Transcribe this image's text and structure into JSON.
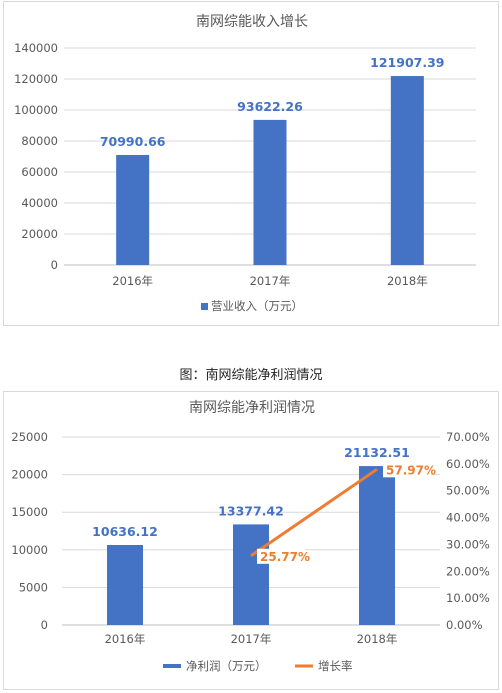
{
  "caption": "图：南网综能净利润情况",
  "chart_data": [
    {
      "type": "bar",
      "title": "南网综能收入增长",
      "categories": [
        "2016年",
        "2017年",
        "2018年"
      ],
      "series": [
        {
          "name": "营业收入（万元）",
          "values": [
            70990.66,
            93622.26,
            121907.39
          ],
          "color": "#4472c4"
        }
      ],
      "data_labels": [
        "70990.66",
        "93622.26",
        "121907.39"
      ],
      "ylim": [
        0,
        140000
      ],
      "yticks": [
        "0",
        "20000",
        "40000",
        "60000",
        "80000",
        "100000",
        "120000",
        "140000"
      ],
      "grid": true,
      "legend": "bottom"
    },
    {
      "type": "bar",
      "title": "南网综能净利润情况",
      "categories": [
        "2016年",
        "2017年",
        "2018年"
      ],
      "series": [
        {
          "name": "净利润（万元）",
          "type": "bar",
          "values": [
            10636.12,
            13377.42,
            21132.51
          ],
          "color": "#4472c4",
          "axis": "left"
        },
        {
          "name": "增长率",
          "type": "line",
          "values": [
            null,
            25.77,
            57.97
          ],
          "color": "#ed7d31",
          "axis": "right",
          "unit": "%"
        }
      ],
      "bar_labels": [
        "10636.12",
        "13377.42",
        "21132.51"
      ],
      "line_labels": [
        "",
        "25.77%",
        "57.97%"
      ],
      "ylim": [
        0,
        25000
      ],
      "yticks": [
        "0",
        "5000",
        "10000",
        "15000",
        "20000",
        "25000"
      ],
      "y2lim": [
        0,
        70
      ],
      "y2ticks": [
        "0.00%",
        "10.00%",
        "20.00%",
        "30.00%",
        "40.00%",
        "50.00%",
        "60.00%",
        "70.00%"
      ],
      "grid": true,
      "legend": "bottom"
    }
  ]
}
